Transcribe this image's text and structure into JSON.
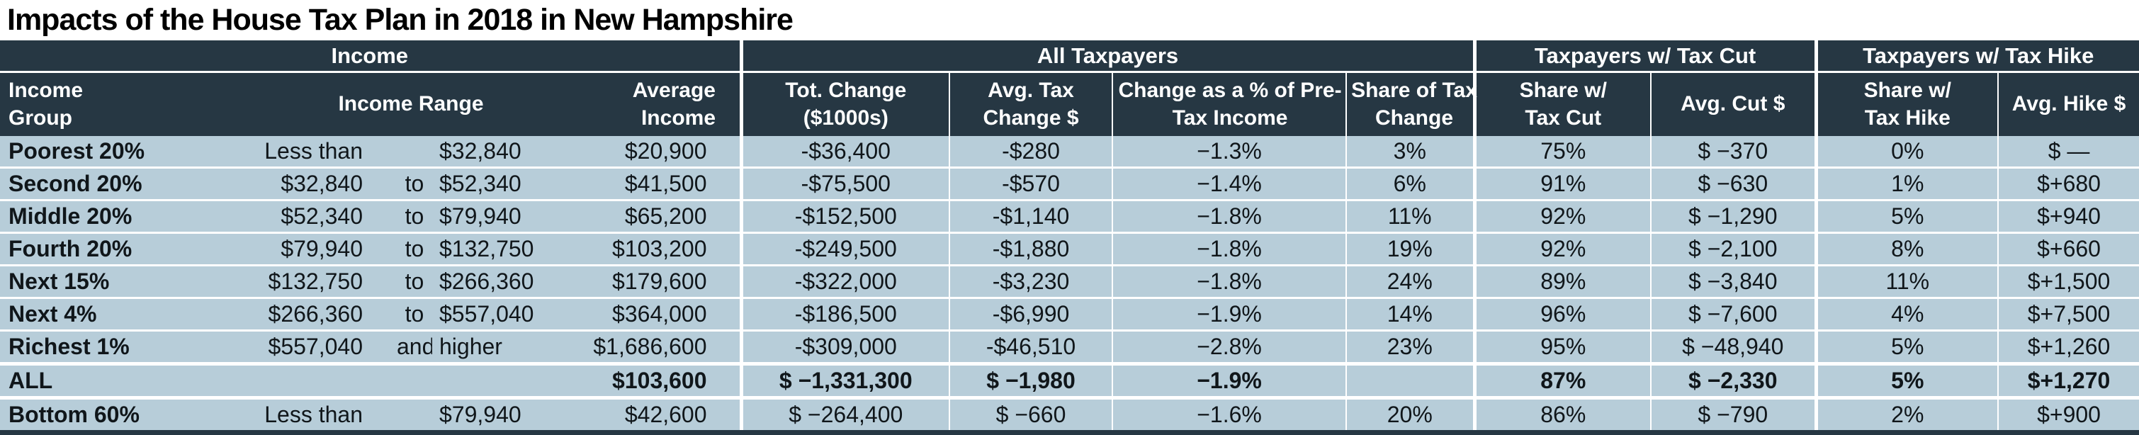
{
  "title": "Impacts of the House Tax Plan in 2018 in New Hampshire",
  "colors": {
    "header_bg": "#263743",
    "row_bg": "#b7cdd9",
    "header_text": "#ffffff",
    "body_text": "#10161a",
    "separator": "#ffffff"
  },
  "chart_data": {
    "type": "table",
    "title": "Impacts of the House Tax Plan in 2018 in New Hampshire",
    "column_groups": [
      {
        "label": "Income",
        "span": 5
      },
      {
        "label": "All Taxpayers",
        "span": 4
      },
      {
        "label": "Taxpayers w/ Tax Cut",
        "span": 2
      },
      {
        "label": "Taxpayers w/ Tax Hike",
        "span": 2
      }
    ],
    "columns": [
      "Income Group",
      "Income Range",
      "Average Income",
      "Tot. Change ($1000s)",
      "Avg. Tax Change $",
      "Change as a % of Pre-Tax Income",
      "Share of Tax Change",
      "Share w/ Tax Cut",
      "Avg. Cut $",
      "Share w/ Tax Hike",
      "Avg. Hike $"
    ],
    "rows": [
      {
        "group": "Poorest 20%",
        "range_lo": "Less than",
        "range_mid": "",
        "range_hi": "$32,840",
        "avg_income": "$20,900",
        "tot_change": "-$36,400",
        "avg_tax_change": "-$280",
        "pct_pretax": "−1.3%",
        "share_tax_change": "3%",
        "share_tax_cut": "75%",
        "avg_cut": "$ −370",
        "share_tax_hike": "0%",
        "avg_hike": "$ —",
        "bold": false
      },
      {
        "group": "Second 20%",
        "range_lo": "$32,840",
        "range_mid": "to",
        "range_hi": "$52,340",
        "avg_income": "$41,500",
        "tot_change": "-$75,500",
        "avg_tax_change": "-$570",
        "pct_pretax": "−1.4%",
        "share_tax_change": "6%",
        "share_tax_cut": "91%",
        "avg_cut": "$ −630",
        "share_tax_hike": "1%",
        "avg_hike": "$+680",
        "bold": false
      },
      {
        "group": "Middle 20%",
        "range_lo": "$52,340",
        "range_mid": "to",
        "range_hi": "$79,940",
        "avg_income": "$65,200",
        "tot_change": "-$152,500",
        "avg_tax_change": "-$1,140",
        "pct_pretax": "−1.8%",
        "share_tax_change": "11%",
        "share_tax_cut": "92%",
        "avg_cut": "$ −1,290",
        "share_tax_hike": "5%",
        "avg_hike": "$+940",
        "bold": false
      },
      {
        "group": "Fourth 20%",
        "range_lo": "$79,940",
        "range_mid": "to",
        "range_hi": "$132,750",
        "avg_income": "$103,200",
        "tot_change": "-$249,500",
        "avg_tax_change": "-$1,880",
        "pct_pretax": "−1.8%",
        "share_tax_change": "19%",
        "share_tax_cut": "92%",
        "avg_cut": "$ −2,100",
        "share_tax_hike": "8%",
        "avg_hike": "$+660",
        "bold": false
      },
      {
        "group": "Next 15%",
        "range_lo": "$132,750",
        "range_mid": "to",
        "range_hi": "$266,360",
        "avg_income": "$179,600",
        "tot_change": "-$322,000",
        "avg_tax_change": "-$3,230",
        "pct_pretax": "−1.8%",
        "share_tax_change": "24%",
        "share_tax_cut": "89%",
        "avg_cut": "$ −3,840",
        "share_tax_hike": "11%",
        "avg_hike": "$+1,500",
        "bold": false
      },
      {
        "group": "Next 4%",
        "range_lo": "$266,360",
        "range_mid": "to",
        "range_hi": "$557,040",
        "avg_income": "$364,000",
        "tot_change": "-$186,500",
        "avg_tax_change": "-$6,990",
        "pct_pretax": "−1.9%",
        "share_tax_change": "14%",
        "share_tax_cut": "96%",
        "avg_cut": "$ −7,600",
        "share_tax_hike": "4%",
        "avg_hike": "$+7,500",
        "bold": false
      },
      {
        "group": "Richest 1%",
        "range_lo": "$557,040",
        "range_mid": "and",
        "range_hi": "higher",
        "avg_income": "$1,686,600",
        "tot_change": "-$309,000",
        "avg_tax_change": "-$46,510",
        "pct_pretax": "−2.8%",
        "share_tax_change": "23%",
        "share_tax_cut": "95%",
        "avg_cut": "$ −48,940",
        "share_tax_hike": "5%",
        "avg_hike": "$+1,260",
        "bold": false
      },
      {
        "group": "ALL",
        "range_lo": "",
        "range_mid": "",
        "range_hi": "",
        "avg_income": "$103,600",
        "tot_change": "$ −1,331,300",
        "avg_tax_change": "$ −1,980",
        "pct_pretax": "−1.9%",
        "share_tax_change": "",
        "share_tax_cut": "87%",
        "avg_cut": "$ −2,330",
        "share_tax_hike": "5%",
        "avg_hike": "$+1,270",
        "bold": true
      },
      {
        "group": "Bottom 60%",
        "range_lo": "Less than",
        "range_mid": "",
        "range_hi": "$79,940",
        "avg_income": "$42,600",
        "tot_change": "$ −264,400",
        "avg_tax_change": "$ −660",
        "pct_pretax": "−1.6%",
        "share_tax_change": "20%",
        "share_tax_cut": "86%",
        "avg_cut": "$ −790",
        "share_tax_hike": "2%",
        "avg_hike": "$+900",
        "bold": false
      }
    ]
  }
}
